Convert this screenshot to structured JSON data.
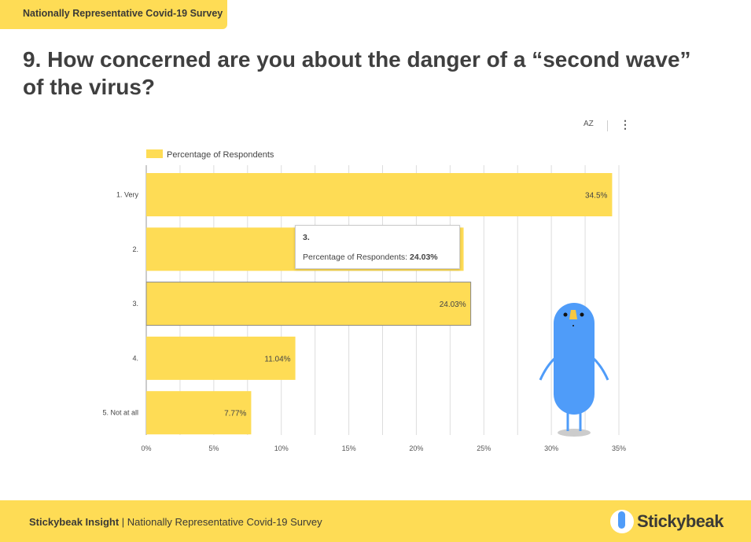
{
  "header": {
    "tag": "Nationally Representative Covid-19 Survey",
    "title": "9. How concerned are you about the danger of a “second wave” of the virus?"
  },
  "toolbar": {
    "sort_label": "AZ",
    "menu_label": "⋮"
  },
  "tooltip": {
    "category": "3.",
    "series": "Percentage of Respondents: ",
    "value": "24.03%"
  },
  "footer": {
    "brand": "Stickybeak Insight",
    "text": " | Nationally Representative Covid-19 Survey",
    "logo": "Stickybeak"
  },
  "chart_data": {
    "type": "bar",
    "orientation": "horizontal",
    "categories": [
      "1. Very",
      "2.",
      "3.",
      "4.",
      "5. Not at all"
    ],
    "series": [
      {
        "name": "Percentage of Respondents",
        "values": [
          34.5,
          23.5,
          24.03,
          11.04,
          7.77
        ],
        "labels": [
          "34.5%",
          "",
          "24.03%",
          "11.04%",
          "7.77%"
        ]
      }
    ],
    "xticks": [
      "0%",
      "5%",
      "10%",
      "15%",
      "20%",
      "25%",
      "30%",
      "35%"
    ],
    "xlim": [
      0,
      35
    ],
    "grid": true,
    "legend": "top-left",
    "color": "#fedc55",
    "highlighted": "3."
  }
}
